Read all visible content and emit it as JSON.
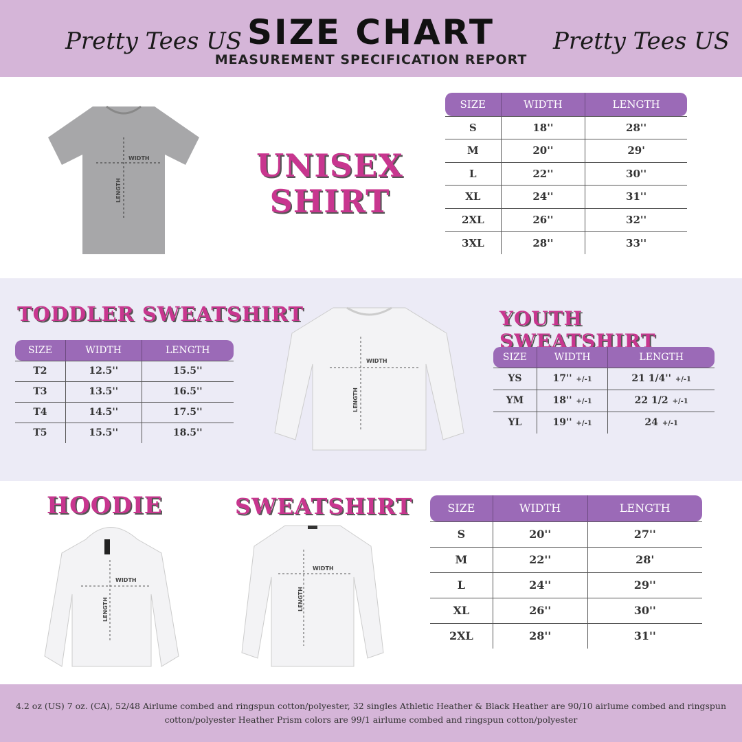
{
  "header": {
    "brand_left": "Pretty Tees US",
    "brand_right": "Pretty Tees US",
    "title": "SIZE CHART",
    "subtitle": "MEASUREMENT SPECIFICATION REPORT"
  },
  "labels": {
    "width": "WIDTH",
    "length": "LENGTH"
  },
  "unisex": {
    "heading_line1": "UNISEX",
    "heading_line2": "SHIRT",
    "columns": [
      "SIZE",
      "WIDTH",
      "LENGTH"
    ],
    "rows": [
      [
        "S",
        "18''",
        "28''"
      ],
      [
        "M",
        "20''",
        "29'"
      ],
      [
        "L",
        "22''",
        "30''"
      ],
      [
        "XL",
        "24''",
        "31''"
      ],
      [
        "2XL",
        "26''",
        "32''"
      ],
      [
        "3XL",
        "28''",
        "33''"
      ]
    ]
  },
  "toddler": {
    "heading": "TODDLER SWEATSHIRT",
    "columns": [
      "SIZE",
      "WIDTH",
      "LENGTH"
    ],
    "rows": [
      [
        "T2",
        "12.5''",
        "15.5''"
      ],
      [
        "T3",
        "13.5''",
        "16.5''"
      ],
      [
        "T4",
        "14.5''",
        "17.5''"
      ],
      [
        "T5",
        "15.5''",
        "18.5''"
      ]
    ]
  },
  "youth": {
    "heading": "YOUTH SWEATSHIRT",
    "columns": [
      "SIZE",
      "WIDTH",
      "LENGTH"
    ],
    "tolerance": "+/-1",
    "rows": [
      [
        "YS",
        "17''",
        "21 1/4''"
      ],
      [
        "YM",
        "18''",
        "22 1/2"
      ],
      [
        "YL",
        "19''",
        "24"
      ]
    ]
  },
  "hoodie": {
    "heading": "HOODIE"
  },
  "sweatshirt": {
    "heading": "SWEATSHIRT",
    "columns": [
      "SIZE",
      "WIDTH",
      "LENGTH"
    ],
    "rows": [
      [
        "S",
        "20''",
        "27''"
      ],
      [
        "M",
        "22''",
        "28'"
      ],
      [
        "L",
        "24''",
        "29''"
      ],
      [
        "XL",
        "26''",
        "30''"
      ],
      [
        "2XL",
        "28''",
        "31''"
      ]
    ]
  },
  "footer": {
    "text": "4.2 oz (US) 7 oz. (CA), 52/48 Airlume combed and ringspun cotton/polyester, 32 singles Athletic Heather & Black Heather are 90/10 airlume combed and ringspun cotton/polyester Heather Prism colors are 99/1 airlume combed and ringspun cotton/polyester"
  },
  "colors": {
    "header_bg": "#d5b5d8",
    "table_header": "#9b6ab7",
    "heading_pink": "#c8368f",
    "band_bg": "#ecebf6"
  }
}
